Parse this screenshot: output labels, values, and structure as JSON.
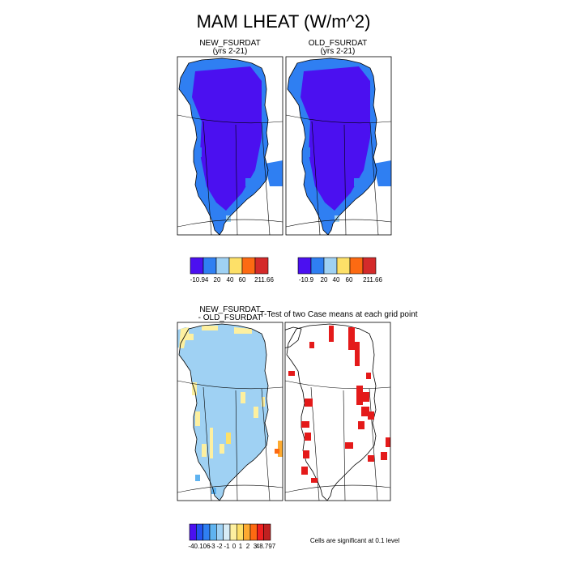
{
  "title": "MAM LHEAT (W/m^2)",
  "panels": {
    "new": {
      "title": "NEW_FSURDAT",
      "subtitle": "(yrs 2-21)"
    },
    "old": {
      "title": "OLD_FSURDAT",
      "subtitle": "(yrs 2-21)"
    },
    "diff": {
      "title_line1": "NEW_FSURDAT",
      "title_line2": "- OLD_FSURDAT"
    },
    "ttest": {
      "title": "T-Test of two Case means at each grid point",
      "note": "Cells are significant at 0.1 level"
    }
  },
  "chart_data": [
    {
      "type": "heatmap",
      "title": "NEW_FSURDAT",
      "subtitle": "(yrs 2-21)",
      "colorbar": {
        "colors": [
          "#4b10f0",
          "#2f7ff2",
          "#9fd1f3",
          "#fde068",
          "#fd6a12",
          "#d42a2a"
        ],
        "labels": [
          "-10.94",
          "20",
          "40",
          "60",
          "211.66"
        ]
      }
    },
    {
      "type": "heatmap",
      "title": "OLD_FSURDAT",
      "subtitle": "(yrs 2-21)",
      "colorbar": {
        "colors": [
          "#4b10f0",
          "#2f7ff2",
          "#9fd1f3",
          "#fde068",
          "#fd6a12",
          "#d42a2a"
        ],
        "labels": [
          "-10.9",
          "20",
          "40",
          "60",
          "211.66"
        ]
      }
    },
    {
      "type": "heatmap",
      "title": "NEW_FSURDAT - OLD_FSURDAT",
      "colorbar": {
        "colors": [
          "#4b10f0",
          "#2354f0",
          "#2f7ff2",
          "#5fb3f0",
          "#9fd1f3",
          "#d7ecf6",
          "#fdf0a0",
          "#fde068",
          "#fdaa30",
          "#fd6a12",
          "#f02020",
          "#c02020"
        ],
        "labels": [
          "-40.106",
          "-3",
          "-2",
          "-1",
          "0",
          "1",
          "2",
          "3",
          "48.797"
        ]
      }
    },
    {
      "type": "heatmap",
      "title": "T-Test of two Case means at each grid point",
      "note": "Cells are significant at 0.1 level",
      "significant_color": "#e41a1a"
    }
  ]
}
